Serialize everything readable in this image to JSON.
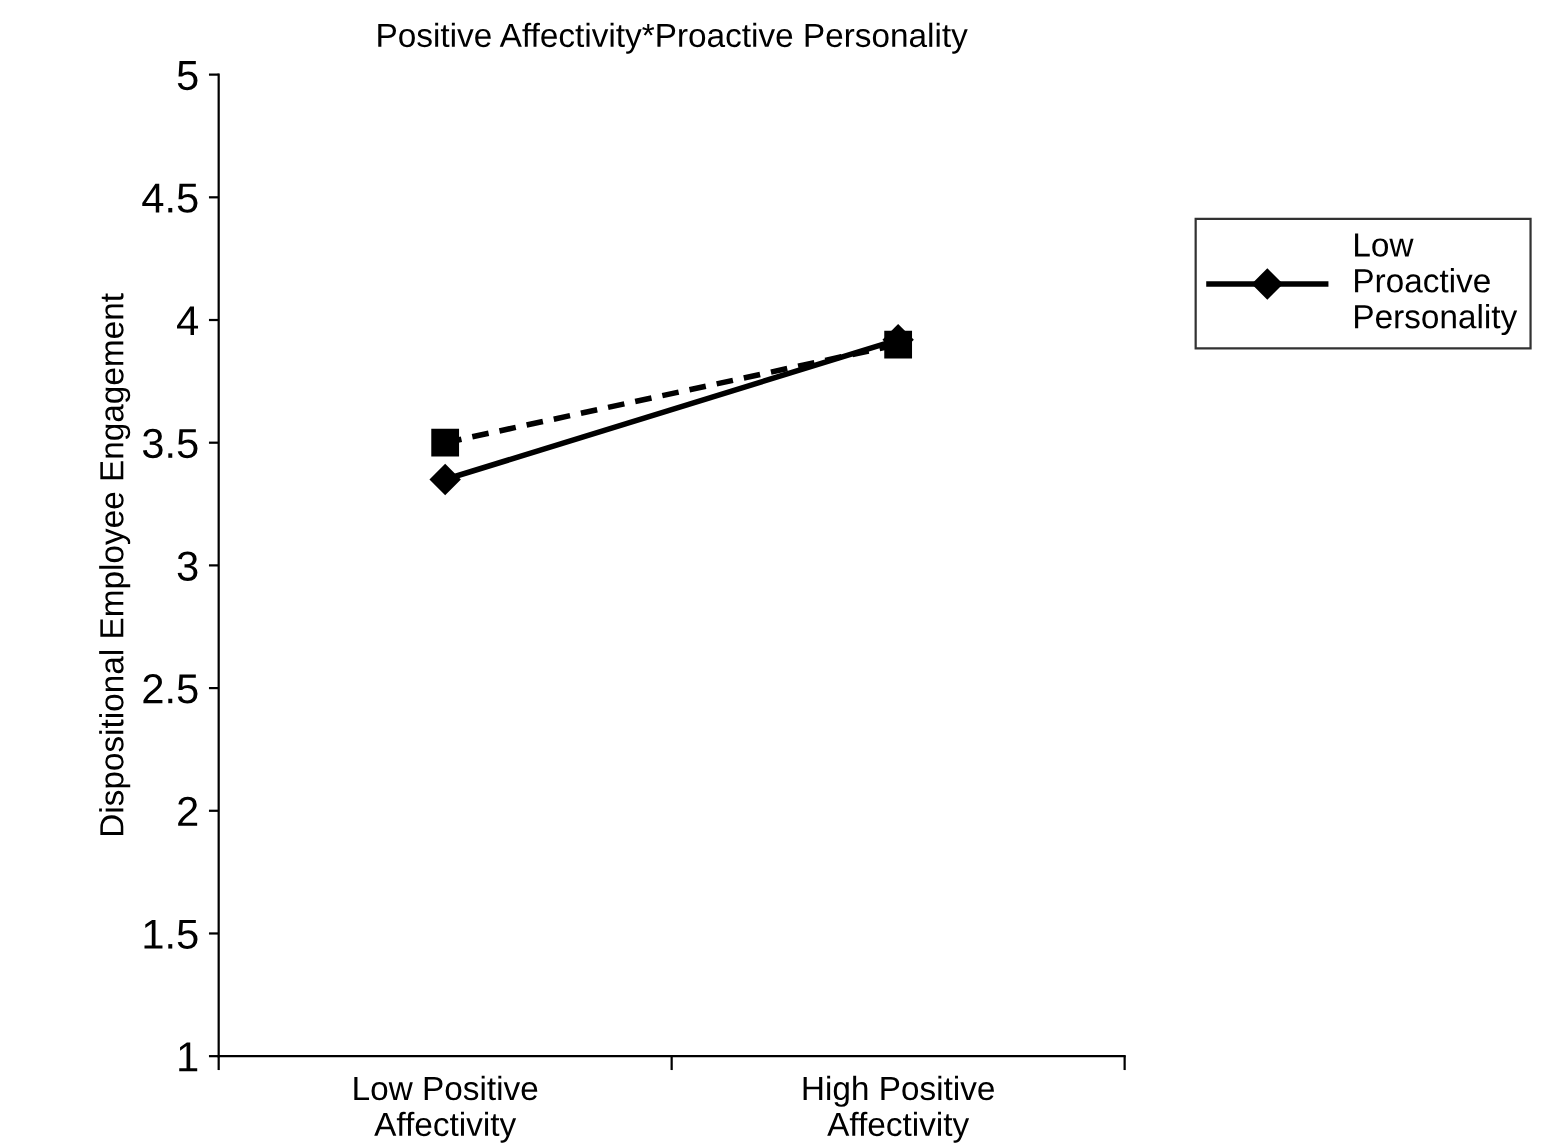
{
  "chart_data": {
    "type": "line",
    "title": "Positive Affectivity*Proactive Personality",
    "ylabel": "Dispositional Employee Engagement",
    "categories": [
      "Low Positive\nAffectivity",
      "High Positive\nAffectivity"
    ],
    "series": [
      {
        "name": "Low\nProactive\nPersonality",
        "color": "#000000",
        "values": [
          3.35,
          3.92
        ],
        "marker": "diamond",
        "line_style": "solid"
      },
      {
        "color": "#000000",
        "values": [
          3.5,
          3.9
        ],
        "marker": "square",
        "line_style": "dashed"
      }
    ],
    "ylim": [
      1,
      5
    ],
    "yticks": [
      1,
      1.5,
      2,
      2.5,
      3,
      3.5,
      4,
      4.5,
      5
    ],
    "grid": false,
    "legend": "right"
  }
}
